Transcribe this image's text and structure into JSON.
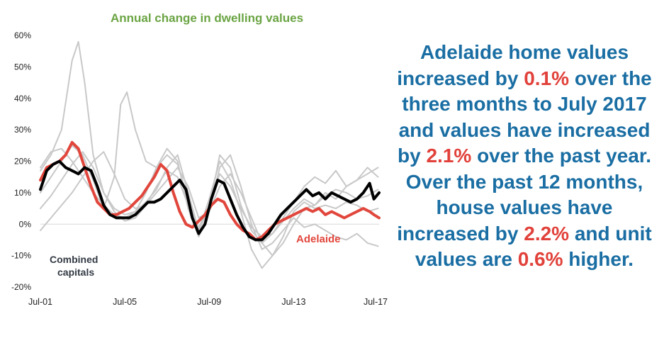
{
  "chart_data": {
    "type": "line",
    "title": "Annual change in dwelling values",
    "xlabel": "",
    "ylabel": "",
    "y_tick_labels": [
      "60%",
      "50%",
      "40%",
      "30%",
      "20%",
      "10%",
      "0%",
      "-10%",
      "-20%"
    ],
    "y_tick_values": [
      60,
      50,
      40,
      30,
      20,
      10,
      0,
      -10,
      -20
    ],
    "ylim": [
      -20,
      60
    ],
    "x_tick_labels": [
      "Jul-01",
      "Jul-05",
      "Jul-09",
      "Jul-13",
      "Jul-17"
    ],
    "x_tick_values": [
      2001.5,
      2005.5,
      2009.5,
      2013.5,
      2017.5
    ],
    "xlim": [
      2001.5,
      2017.55
    ],
    "annotations": [
      "Combined capitals",
      "Adelaide"
    ],
    "grid": false,
    "colors": {
      "highlight": "#e1463c",
      "combined": "#000000",
      "others": "#c8c8c8",
      "title": "#6aa443"
    },
    "series": [
      {
        "name": "Combined capitals",
        "color": "#000000",
        "x": [
          2001.5,
          2001.8,
          2002.1,
          2002.4,
          2002.7,
          2003.0,
          2003.3,
          2003.6,
          2003.9,
          2004.2,
          2004.5,
          2004.8,
          2005.1,
          2005.4,
          2005.7,
          2006.0,
          2006.3,
          2006.6,
          2006.9,
          2007.2,
          2007.5,
          2007.8,
          2008.1,
          2008.4,
          2008.7,
          2009.0,
          2009.3,
          2009.6,
          2009.9,
          2010.2,
          2010.5,
          2010.8,
          2011.1,
          2011.4,
          2011.7,
          2012.0,
          2012.3,
          2012.6,
          2012.9,
          2013.2,
          2013.5,
          2013.8,
          2014.1,
          2014.4,
          2014.7,
          2015.0,
          2015.3,
          2015.6,
          2015.9,
          2016.2,
          2016.5,
          2016.8,
          2017.1,
          2017.3,
          2017.55
        ],
        "y": [
          11,
          17,
          19,
          20,
          18,
          17,
          16,
          18,
          17,
          12,
          6,
          3,
          2,
          2,
          2,
          3,
          5,
          7,
          7,
          8,
          10,
          12,
          14,
          11,
          2,
          -3,
          0,
          8,
          14,
          13,
          8,
          3,
          -1,
          -4,
          -5,
          -5,
          -3,
          0,
          3,
          5,
          7,
          9,
          11,
          9,
          10,
          8,
          10,
          9,
          8,
          7,
          8,
          10,
          13,
          8,
          10
        ]
      },
      {
        "name": "Adelaide",
        "color": "#e1463c",
        "x": [
          2001.5,
          2001.8,
          2002.1,
          2002.4,
          2002.7,
          2003.0,
          2003.3,
          2003.6,
          2003.9,
          2004.2,
          2004.5,
          2004.8,
          2005.1,
          2005.4,
          2005.7,
          2006.0,
          2006.3,
          2006.6,
          2006.9,
          2007.2,
          2007.5,
          2007.8,
          2008.1,
          2008.4,
          2008.7,
          2009.0,
          2009.3,
          2009.6,
          2009.9,
          2010.2,
          2010.5,
          2010.8,
          2011.1,
          2011.4,
          2011.7,
          2012.0,
          2012.3,
          2012.6,
          2012.9,
          2013.2,
          2013.5,
          2013.8,
          2014.1,
          2014.4,
          2014.7,
          2015.0,
          2015.3,
          2015.6,
          2015.9,
          2016.2,
          2016.5,
          2016.8,
          2017.1,
          2017.3,
          2017.55
        ],
        "y": [
          14,
          18,
          19,
          20,
          22,
          26,
          24,
          18,
          12,
          7,
          5,
          3,
          3,
          4,
          5,
          7,
          9,
          12,
          15,
          19,
          17,
          10,
          4,
          0,
          -1,
          1,
          3,
          6,
          8,
          7,
          3,
          0,
          -2,
          -3,
          -5,
          -4,
          -2,
          0,
          1,
          2,
          3,
          4,
          5,
          4,
          5,
          3,
          4,
          3,
          2,
          3,
          4,
          5,
          4,
          3,
          2
        ]
      },
      {
        "name": "",
        "color": "#c8c8c8",
        "x": [
          2001.5,
          2002.0,
          2002.5,
          2003.0,
          2003.3,
          2003.6,
          2004.0,
          2004.5,
          2005.0,
          2005.5,
          2006.0,
          2006.5,
          2007.0,
          2007.5,
          2008.0,
          2008.5,
          2009.0,
          2009.5,
          2010.0,
          2010.5,
          2011.0,
          2011.5,
          2012.0,
          2012.5,
          2013.0,
          2013.5,
          2014.0,
          2014.5,
          2015.0,
          2015.5,
          2016.0,
          2016.5,
          2017.0,
          2017.5
        ],
        "y": [
          17,
          22,
          30,
          52,
          58,
          45,
          22,
          10,
          5,
          3,
          4,
          7,
          11,
          18,
          22,
          10,
          -2,
          5,
          22,
          18,
          6,
          -2,
          -6,
          -3,
          2,
          7,
          12,
          15,
          13,
          17,
          12,
          14,
          18,
          15
        ]
      },
      {
        "name": "",
        "color": "#c8c8c8",
        "x": [
          2001.5,
          2002.0,
          2002.5,
          2003.0,
          2003.5,
          2004.0,
          2004.5,
          2005.0,
          2005.3,
          2005.6,
          2006.0,
          2006.5,
          2007.0,
          2007.5,
          2008.0,
          2008.5,
          2009.0,
          2009.5,
          2010.0,
          2010.5,
          2011.0,
          2011.5,
          2012.0,
          2012.5,
          2013.0,
          2013.5,
          2014.0,
          2014.5,
          2015.0,
          2015.5,
          2016.0,
          2016.5,
          2017.0,
          2017.5
        ],
        "y": [
          10,
          15,
          20,
          25,
          22,
          14,
          5,
          15,
          38,
          42,
          30,
          20,
          18,
          22,
          19,
          8,
          -2,
          8,
          20,
          14,
          4,
          -8,
          -14,
          -10,
          -4,
          4,
          7,
          5,
          6,
          5,
          7,
          6,
          4,
          5
        ]
      },
      {
        "name": "",
        "color": "#c8c8c8",
        "x": [
          2001.5,
          2002.0,
          2002.5,
          2003.0,
          2003.5,
          2004.0,
          2004.5,
          2005.0,
          2005.5,
          2006.0,
          2006.5,
          2007.0,
          2007.5,
          2008.0,
          2008.5,
          2009.0,
          2009.5,
          2010.0,
          2010.5,
          2011.0,
          2011.5,
          2012.0,
          2012.5,
          2013.0,
          2013.5,
          2014.0,
          2014.5,
          2015.0,
          2015.5,
          2016.0,
          2016.5,
          2017.0,
          2017.5
        ],
        "y": [
          -2,
          2,
          6,
          10,
          15,
          20,
          23,
          16,
          8,
          5,
          6,
          10,
          14,
          18,
          12,
          2,
          4,
          12,
          16,
          10,
          2,
          -6,
          -10,
          -6,
          0,
          5,
          6,
          10,
          8,
          12,
          14,
          16,
          18
        ]
      },
      {
        "name": "",
        "color": "#c8c8c8",
        "x": [
          2001.5,
          2002.0,
          2002.5,
          2003.0,
          2003.5,
          2004.0,
          2004.5,
          2005.0,
          2005.5,
          2006.0,
          2006.5,
          2007.0,
          2007.5,
          2008.0,
          2008.5,
          2009.0,
          2009.5,
          2010.0,
          2010.5,
          2011.0,
          2011.5,
          2012.0,
          2012.5,
          2013.0,
          2013.5,
          2014.0,
          2014.5,
          2015.0,
          2015.5,
          2016.0,
          2016.5,
          2017.0,
          2017.5
        ],
        "y": [
          18,
          23,
          24,
          20,
          15,
          10,
          6,
          3,
          2,
          4,
          10,
          18,
          24,
          20,
          5,
          -4,
          4,
          18,
          22,
          12,
          0,
          -8,
          -6,
          -2,
          2,
          -1,
          0,
          -2,
          -4,
          -5,
          -3,
          -6,
          -7
        ]
      },
      {
        "name": "",
        "color": "#c8c8c8",
        "x": [
          2001.5,
          2002.0,
          2002.5,
          2003.0,
          2003.5,
          2004.0,
          2004.5,
          2005.0,
          2005.5,
          2006.0,
          2006.5,
          2007.0,
          2007.5,
          2008.0,
          2008.5,
          2009.0,
          2009.5,
          2010.0,
          2010.5,
          2011.0,
          2011.5,
          2012.0,
          2012.5,
          2013.0,
          2013.5,
          2014.0,
          2014.5,
          2015.0,
          2015.5,
          2016.0,
          2016.5,
          2017.0,
          2017.5
        ],
        "y": [
          5,
          9,
          14,
          19,
          23,
          18,
          10,
          4,
          1,
          2,
          6,
          12,
          17,
          15,
          6,
          -1,
          6,
          16,
          12,
          5,
          -1,
          -4,
          -3,
          1,
          5,
          8,
          6,
          9,
          11,
          10,
          8,
          9,
          11
        ]
      }
    ]
  },
  "headline": {
    "p1": "Adelaide home values increased by ",
    "v1": "0.1%",
    "p2": " over the three months to July 2017 and values have increased by ",
    "v2": "2.1%",
    "p3": " over the past year.  Over the past 12 months, house values have increased by ",
    "v3": "2.2%",
    "p4": " and unit values are ",
    "v4": "0.6%",
    "p5": " higher."
  }
}
